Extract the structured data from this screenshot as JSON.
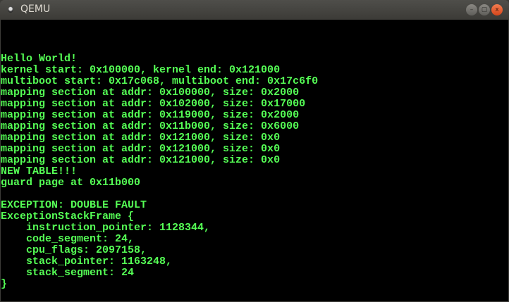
{
  "window": {
    "title": "QEMU",
    "controls": {
      "minimize": "–",
      "maximize": "▢",
      "close": "x"
    }
  },
  "terminal": {
    "text_color": "#55ff55",
    "background": "#000000",
    "lines": [
      "Hello World!",
      "kernel start: 0x100000, kernel end: 0x121000",
      "multiboot start: 0x17c068, multiboot end: 0x17c6f0",
      "mapping section at addr: 0x100000, size: 0x2000",
      "mapping section at addr: 0x102000, size: 0x17000",
      "mapping section at addr: 0x119000, size: 0x2000",
      "mapping section at addr: 0x11b000, size: 0x6000",
      "mapping section at addr: 0x121000, size: 0x0",
      "mapping section at addr: 0x121000, size: 0x0",
      "mapping section at addr: 0x121000, size: 0x0",
      "NEW TABLE!!!",
      "guard page at 0x11b000",
      "",
      "EXCEPTION: DOUBLE FAULT",
      "ExceptionStackFrame {",
      "    instruction_pointer: 1128344,",
      "    code_segment: 24,",
      "    cpu_flags: 2097158,",
      "    stack_pointer: 1163248,",
      "    stack_segment: 24",
      "}"
    ]
  }
}
